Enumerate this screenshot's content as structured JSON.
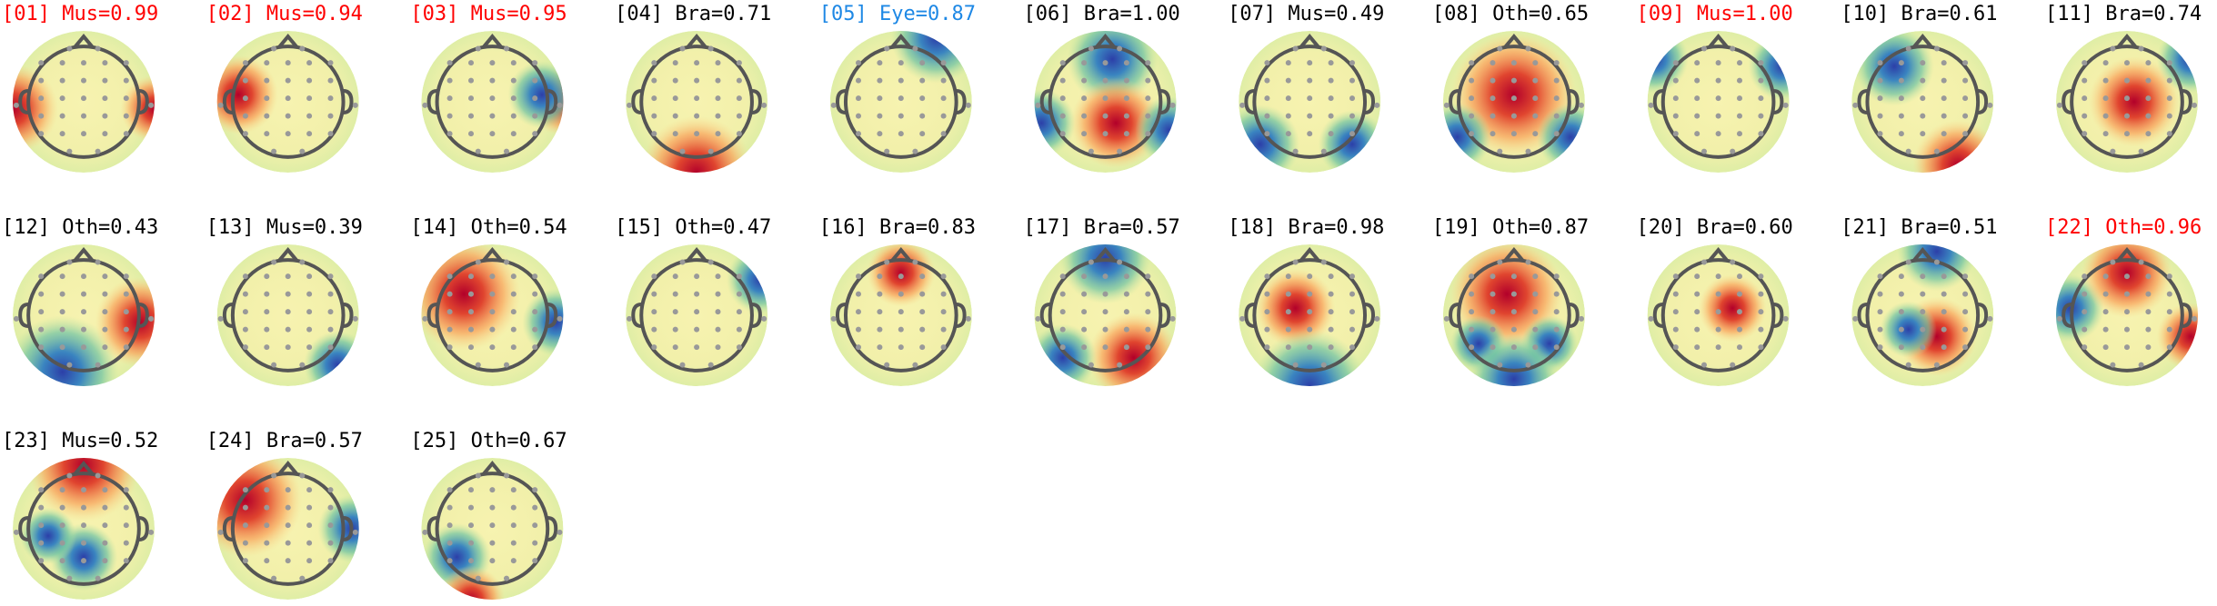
{
  "components": [
    {
      "title": "[01] Mus=0.99",
      "color": "#ff0000"
    },
    {
      "title": "[02] Mus=0.94",
      "color": "#ff0000"
    },
    {
      "title": "[03] Mus=0.95",
      "color": "#ff0000"
    },
    {
      "title": "[04] Bra=0.71",
      "color": "#000000"
    },
    {
      "title": "[05] Eye=0.87",
      "color": "#1e88e5"
    },
    {
      "title": "[06] Bra=1.00",
      "color": "#000000"
    },
    {
      "title": "[07] Mus=0.49",
      "color": "#000000"
    },
    {
      "title": "[08] Oth=0.65",
      "color": "#000000"
    },
    {
      "title": "[09] Mus=1.00",
      "color": "#ff0000"
    },
    {
      "title": "[10] Bra=0.61",
      "color": "#000000"
    },
    {
      "title": "[11] Bra=0.74",
      "color": "#000000"
    },
    {
      "title": "[12] Oth=0.43",
      "color": "#000000"
    },
    {
      "title": "[13] Mus=0.39",
      "color": "#000000"
    },
    {
      "title": "[14] Oth=0.54",
      "color": "#000000"
    },
    {
      "title": "[15] Oth=0.47",
      "color": "#000000"
    },
    {
      "title": "[16] Bra=0.83",
      "color": "#000000"
    },
    {
      "title": "[17] Bra=0.57",
      "color": "#000000"
    },
    {
      "title": "[18] Bra=0.98",
      "color": "#000000"
    },
    {
      "title": "[19] Oth=0.87",
      "color": "#000000"
    },
    {
      "title": "[20] Bra=0.60",
      "color": "#000000"
    },
    {
      "title": "[21] Bra=0.51",
      "color": "#000000"
    },
    {
      "title": "[22] Oth=0.96",
      "color": "#ff0000"
    },
    {
      "title": "[23] Mus=0.52",
      "color": "#000000"
    },
    {
      "title": "[24] Bra=0.57",
      "color": "#000000"
    },
    {
      "title": "[25] Oth=0.67",
      "color": "#000000"
    }
  ]
}
